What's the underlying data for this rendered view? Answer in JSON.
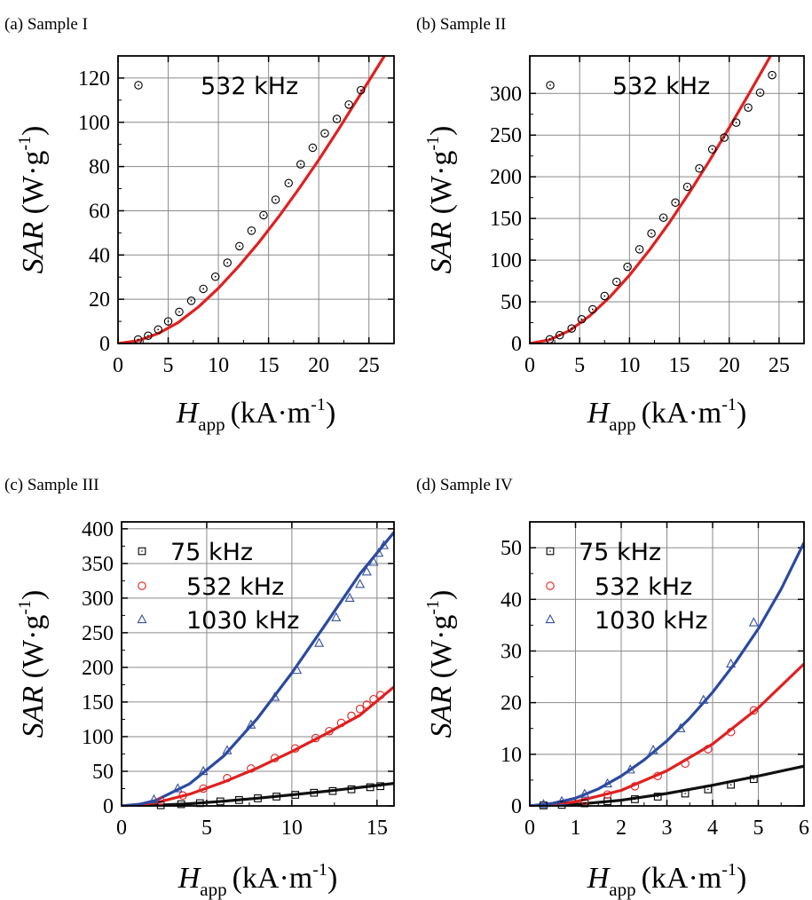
{
  "chart_data": [
    {
      "panel": "(a)",
      "title": "Sample I",
      "type": "scatter",
      "xlabel": {
        "main": "H",
        "sub": "app",
        "unit": "(kA·m",
        "exp": "-1",
        "close": ")"
      },
      "ylabel": {
        "main": "SAR",
        "unit": "(W·g",
        "exp": "-1",
        "close": ")"
      },
      "xlim": [
        0,
        27.5
      ],
      "ylim": [
        0,
        130
      ],
      "xticks": [
        0,
        5,
        10,
        15,
        20,
        25
      ],
      "yticks": [
        0,
        20,
        40,
        60,
        80,
        100,
        120
      ],
      "grid": true,
      "legend_position": "top-left",
      "series": [
        {
          "name": "532 kHz",
          "marker": "circle-dot",
          "color": "#000000",
          "fit_color": "#e02020",
          "x": [
            2.0,
            3.0,
            4.0,
            5.0,
            6.1,
            7.3,
            8.5,
            9.7,
            10.9,
            12.1,
            13.3,
            14.5,
            15.7,
            17.0,
            18.2,
            19.4,
            20.6,
            21.8,
            23.0,
            24.2
          ],
          "y": [
            1.8,
            3.5,
            6.3,
            10.0,
            14.3,
            19.3,
            24.7,
            30.2,
            36.5,
            44.0,
            51.0,
            58.0,
            65.0,
            72.5,
            81.0,
            88.5,
            95.0,
            101.5,
            108.0,
            114.5
          ],
          "fit_x": [
            0,
            2,
            4,
            6,
            8,
            10,
            12,
            14,
            16,
            18,
            20,
            22,
            24,
            26,
            27.5
          ],
          "fit_y": [
            0,
            1.3,
            4.5,
            9.5,
            16.5,
            25.0,
            34.8,
            45.5,
            57.2,
            69.8,
            83.0,
            97.0,
            111.5,
            126.0,
            137.0
          ]
        }
      ]
    },
    {
      "panel": "(b)",
      "title": "Sample II",
      "type": "scatter",
      "xlabel": {
        "main": "H",
        "sub": "app",
        "unit": "(kA·m",
        "exp": "-1",
        "close": ")"
      },
      "ylabel": {
        "main": "SAR",
        "unit": "(W·g",
        "exp": "-1",
        "close": ")"
      },
      "xlim": [
        0,
        27.5
      ],
      "ylim": [
        0,
        345
      ],
      "xticks": [
        0,
        5,
        10,
        15,
        20,
        25
      ],
      "yticks": [
        0,
        50,
        100,
        150,
        200,
        250,
        300
      ],
      "grid": true,
      "legend_position": "top-left",
      "series": [
        {
          "name": "532 kHz",
          "marker": "circle-dot",
          "color": "#000000",
          "fit_color": "#e02020",
          "x": [
            2.0,
            3.0,
            4.2,
            5.2,
            6.3,
            7.5,
            8.7,
            9.8,
            11.0,
            12.2,
            13.4,
            14.6,
            15.8,
            17.0,
            18.3,
            19.5,
            20.7,
            21.9,
            23.1,
            24.3
          ],
          "y": [
            5.0,
            10.0,
            18.0,
            29.0,
            41.0,
            57.0,
            74.0,
            92.0,
            113.0,
            132.0,
            151.0,
            169.0,
            188.0,
            210.0,
            233.0,
            247.0,
            265.0,
            283.0,
            301.0,
            322.0
          ],
          "fit_x": [
            0,
            2,
            4,
            6,
            8,
            10,
            12,
            14,
            16,
            18,
            20,
            22,
            24,
            26
          ],
          "fit_y": [
            0,
            4.5,
            15.5,
            33.0,
            55.5,
            82.0,
            112.0,
            145.0,
            181.0,
            219.0,
            259.0,
            300.0,
            342.0,
            385.0
          ]
        }
      ]
    },
    {
      "panel": "(c)",
      "title": "Sample III",
      "type": "scatter",
      "xlabel": {
        "main": "H",
        "sub": "app",
        "unit": "(kA·m",
        "exp": "-1",
        "close": ")"
      },
      "ylabel": {
        "main": "SAR",
        "unit": "(W·g",
        "exp": "-1",
        "close": ")"
      },
      "xlim": [
        0,
        16
      ],
      "ylim": [
        0,
        410
      ],
      "xticks": [
        0,
        5,
        10,
        15
      ],
      "yticks": [
        0,
        50,
        100,
        150,
        200,
        250,
        300,
        350,
        400
      ],
      "grid": true,
      "legend_position": "top-left",
      "series": [
        {
          "name": "75 kHz",
          "marker": "square-dot",
          "color": "#000000",
          "fit_color": "#111111",
          "x": [
            2.3,
            3.5,
            4.6,
            5.8,
            6.9,
            8.0,
            9.1,
            10.2,
            11.3,
            12.4,
            13.5,
            14.6,
            15.2
          ],
          "y": [
            1.0,
            2.5,
            4.0,
            6.5,
            8.5,
            11.0,
            13.5,
            16.0,
            19.0,
            21.5,
            24.0,
            27.0,
            28.5
          ],
          "fit_x": [
            0,
            2,
            4,
            6,
            8,
            10,
            12,
            14,
            16
          ],
          "fit_y": [
            0,
            0.8,
            3.2,
            6.8,
            11.2,
            16.0,
            21.2,
            26.8,
            32.5
          ]
        },
        {
          "name": "532 kHz",
          "marker": "circle",
          "color": "#e02020",
          "fit_color": "#e02020",
          "x": [
            2.3,
            3.6,
            4.8,
            6.2,
            7.6,
            9.0,
            10.2,
            11.4,
            12.2,
            12.9,
            13.5,
            14.0,
            14.4,
            14.8,
            15.2
          ],
          "y": [
            7.0,
            15.0,
            25.0,
            40.0,
            54.0,
            69.0,
            83.0,
            98.0,
            108.0,
            120.0,
            130.0,
            140.0,
            146.0,
            154.0,
            160.0
          ],
          "fit_x": [
            0,
            2,
            4,
            6,
            8,
            10,
            12,
            14,
            16
          ],
          "fit_y": [
            0,
            4.5,
            17.0,
            34.5,
            55.0,
            78.5,
            104.0,
            131.0,
            172.0
          ]
        },
        {
          "name": "1030 kHz",
          "marker": "triangle",
          "color": "#3550a0",
          "fit_color": "#2a4aa0",
          "x": [
            1.9,
            3.3,
            4.8,
            6.2,
            7.6,
            9.0,
            10.3,
            11.6,
            12.6,
            13.4,
            14.0,
            14.4,
            14.8,
            15.1,
            15.4
          ],
          "y": [
            9.0,
            25.0,
            50.0,
            80.0,
            117.0,
            157.0,
            196.0,
            235.0,
            272.0,
            300.0,
            320.0,
            338.0,
            352.0,
            365.0,
            376.0
          ],
          "fit_x": [
            0,
            1,
            2,
            4,
            6,
            8,
            10,
            12,
            14,
            16
          ],
          "fit_y": [
            0,
            2.0,
            8.0,
            32.0,
            72.0,
            127.0,
            192.0,
            263.0,
            335.0,
            395.0
          ]
        }
      ]
    },
    {
      "panel": "(d)",
      "title": "Sample IV",
      "type": "scatter",
      "xlabel": {
        "main": "H",
        "sub": "app",
        "unit": "(kA·m",
        "exp": "-1",
        "close": ")"
      },
      "ylabel": {
        "main": "SAR",
        "unit": "(W·g",
        "exp": "-1",
        "close": ")"
      },
      "xlim": [
        0,
        6
      ],
      "ylim": [
        0,
        55
      ],
      "xticks": [
        0,
        1,
        2,
        3,
        4,
        5,
        6
      ],
      "yticks": [
        0,
        10,
        20,
        30,
        40,
        50
      ],
      "grid": true,
      "legend_position": "top-left",
      "series": [
        {
          "name": "75 kHz",
          "marker": "square-dot",
          "color": "#000000",
          "fit_color": "#111111",
          "x": [
            0.3,
            0.7,
            1.2,
            1.7,
            2.3,
            2.8,
            3.4,
            3.9,
            4.4,
            4.9
          ],
          "y": [
            0.1,
            0.2,
            0.5,
            0.9,
            1.3,
            1.8,
            2.4,
            3.2,
            4.1,
            5.2
          ],
          "fit_x": [
            0,
            1,
            2,
            3,
            4,
            5,
            6
          ],
          "fit_y": [
            0,
            0.3,
            1.1,
            2.4,
            4.0,
            5.8,
            7.7
          ]
        },
        {
          "name": "532 kHz",
          "marker": "circle",
          "color": "#e02020",
          "fit_color": "#e02020",
          "x": [
            1.2,
            1.7,
            2.3,
            2.8,
            3.4,
            3.9,
            4.4,
            4.9
          ],
          "y": [
            1.0,
            2.2,
            3.8,
            5.8,
            8.2,
            11.0,
            14.3,
            18.5
          ],
          "fit_x": [
            0,
            0.5,
            1,
            2,
            3,
            4,
            5,
            6
          ],
          "fit_y": [
            0,
            0.2,
            0.8,
            3.0,
            6.8,
            12.0,
            19.0,
            27.5
          ]
        },
        {
          "name": "1030 kHz",
          "marker": "triangle",
          "color": "#3550a0",
          "fit_color": "#2a4aa0",
          "x": [
            0.3,
            0.7,
            1.2,
            1.7,
            2.2,
            2.7,
            3.3,
            3.8,
            4.4,
            4.9
          ],
          "y": [
            0.3,
            0.9,
            2.3,
            4.3,
            7.0,
            10.8,
            15.0,
            20.5,
            27.5,
            35.5
          ],
          "fit_x": [
            0,
            0.5,
            1,
            1.5,
            2,
            2.5,
            3,
            3.5,
            4,
            4.5,
            5,
            5.5,
            6
          ],
          "fit_y": [
            0,
            0.5,
            1.5,
            3.3,
            5.8,
            8.9,
            12.6,
            17.0,
            22.0,
            27.8,
            34.3,
            42.0,
            51.0
          ]
        }
      ]
    }
  ]
}
